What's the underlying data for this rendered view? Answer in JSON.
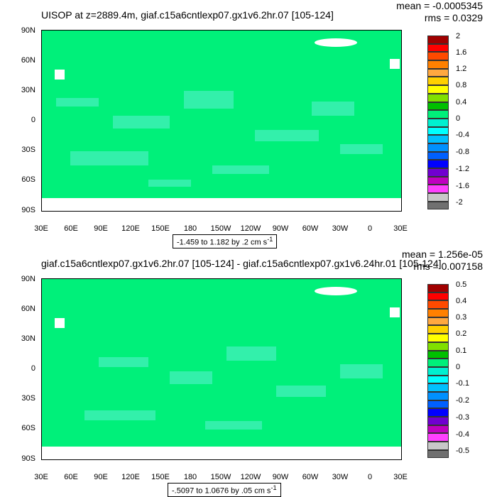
{
  "chart_data": [
    {
      "type": "heatmap",
      "title": "UISOP at z=2889.4m, giaf.c15a6cntlexp07.gx1v6.2hr.07 [105-124]",
      "mean": "mean = -0.0005345",
      "rms": "rms = 0.0329",
      "range_text": "-1.459 to 1.182 by .2 cm s",
      "units_exp": "-1",
      "y_ticks": [
        "90N",
        "60N",
        "30N",
        "0",
        "30S",
        "60S",
        "90S"
      ],
      "x_ticks": [
        "30E",
        "60E",
        "90E",
        "120E",
        "150E",
        "180",
        "150W",
        "120W",
        "90W",
        "60W",
        "30W",
        "0",
        "30E"
      ],
      "colorbar_levels": [
        "2",
        "1.6",
        "1.2",
        "0.8",
        "0.4",
        "0",
        "-0.4",
        "-0.8",
        "-1.2",
        "-1.6",
        "-2"
      ],
      "colorbar_colors": [
        "#a00000",
        "#ff0000",
        "#ff4a00",
        "#ff8000",
        "#ffa840",
        "#ffd000",
        "#ffff00",
        "#80e000",
        "#00c000",
        "#00f07a",
        "#00f0d0",
        "#00ffff",
        "#00c0ff",
        "#0090ff",
        "#0060ff",
        "#0000ff",
        "#7000d0",
        "#c000c0",
        "#ff40ff",
        "#c8c8c8",
        "#707070"
      ],
      "dominant_color": "#00f07a"
    },
    {
      "type": "heatmap",
      "title": "giaf.c15a6cntlexp07.gx1v6.2hr.07 [105-124] - giaf.c15a6cntlexp07.gx1v6.24hr.01 [105-124]",
      "mean": "mean = 1.256e-05",
      "rms": "rms = 0.007158",
      "range_text": "-.5097 to 1.0676 by .05 cm s",
      "units_exp": "-1",
      "y_ticks": [
        "90N",
        "60N",
        "30N",
        "0",
        "30S",
        "60S",
        "90S"
      ],
      "x_ticks": [
        "30E",
        "60E",
        "90E",
        "120E",
        "150E",
        "180",
        "150W",
        "120W",
        "90W",
        "60W",
        "30W",
        "0",
        "30E"
      ],
      "colorbar_levels": [
        "0.5",
        "0.4",
        "0.3",
        "0.2",
        "0.1",
        "0",
        "-0.1",
        "-0.2",
        "-0.3",
        "-0.4",
        "-0.5"
      ],
      "colorbar_colors": [
        "#a00000",
        "#ff0000",
        "#ff4a00",
        "#ff8000",
        "#ffa840",
        "#ffd000",
        "#ffff00",
        "#80e000",
        "#00c000",
        "#00f07a",
        "#00f0d0",
        "#00ffff",
        "#00c0ff",
        "#0090ff",
        "#0060ff",
        "#0000ff",
        "#7000d0",
        "#c000c0",
        "#ff40ff",
        "#c8c8c8",
        "#707070"
      ],
      "dominant_color": "#00f07a"
    }
  ]
}
